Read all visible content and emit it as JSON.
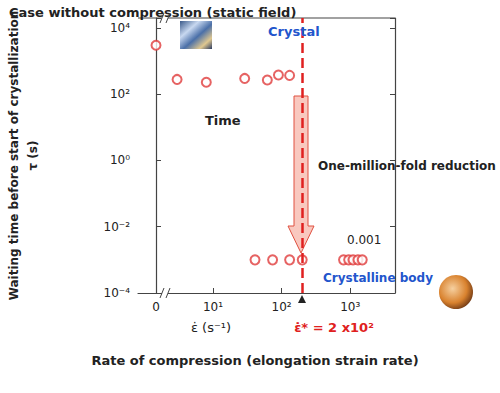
{
  "chart_data": [
    {
      "type": "scatter",
      "title": "Case without compression (static field)",
      "ylabel": "Waiting time before start of crystallization",
      "x": [
        0
      ],
      "values": [
        3000
      ],
      "xlim": [
        -2,
        1
      ],
      "xticks": [
        0
      ],
      "ylim": [
        0.0001,
        20000
      ],
      "yticks": [
        {
          "value": 0.0001,
          "label": "10⁻⁴"
        },
        {
          "value": 0.01,
          "label": "10⁻²"
        },
        {
          "value": 1,
          "label": "10⁰"
        },
        {
          "value": 100,
          "label": "10²"
        },
        {
          "value": 10000,
          "label": "10⁴"
        }
      ],
      "log": "y",
      "grid": false,
      "color": "#e03c3c",
      "marker": "circle_open"
    },
    {
      "type": "scatter",
      "xlabel": "Rate of compression (elongation strain rate)",
      "x": [
        3,
        8,
        29,
        62,
        90,
        131,
        41,
        74,
        131,
        200,
        800,
        950,
        1100,
        1300,
        1500
      ],
      "values": [
        280,
        230,
        300,
        270,
        380,
        370,
        0.001,
        0.001,
        0.001,
        0.001,
        0.001,
        0.001,
        0.001,
        0.001,
        0.001
      ],
      "xlim": [
        2,
        4500
      ],
      "xticks": [
        {
          "value": 10,
          "label": "10¹"
        },
        {
          "value": 100,
          "label": "10²"
        },
        {
          "value": 1000,
          "label": "10³"
        }
      ],
      "ylim": [
        0.0001,
        20000
      ],
      "yticks": [
        {
          "value": 0.0001,
          "label": "10⁻⁴"
        },
        {
          "value": 0.01,
          "label": "10⁻²"
        },
        {
          "value": 1,
          "label": "10⁰"
        },
        {
          "value": 100,
          "label": "10²"
        },
        {
          "value": 10000,
          "label": "10⁴"
        }
      ],
      "log": true,
      "grid": false,
      "tick_labels": "x",
      "color": "#e03c3c",
      "marker": "circle_open",
      "threshold": {
        "x": 200,
        "label": "ε̇* = 2 x10²",
        "color": "#e02020",
        "line_style": "dashed"
      },
      "annotations": {
        "x_symbol": "ε̇ (s⁻¹)",
        "y_symbol": "τ (s)",
        "crystal": "Crystal",
        "time": "Time",
        "reduction": "One-million-fold reduction",
        "point_label": "0.001",
        "crystalline_body": "Crystalline body"
      }
    }
  ]
}
